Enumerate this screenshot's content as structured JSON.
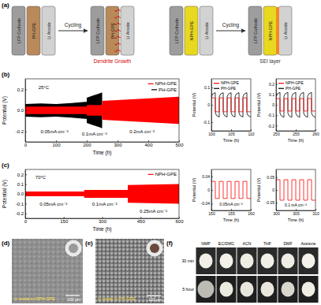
{
  "panel_a": {
    "label": "(a)",
    "cells": [
      {
        "cathode": "LFP Cathode",
        "electrolyte": "PH-GPE",
        "anode": "Li Anode"
      },
      {
        "cathode": "LFP Cathode",
        "electrolyte": "PH-GPE",
        "anode": "Li Anode",
        "note": "Dendrite Growth"
      },
      {
        "cathode": "LFP Cathode",
        "electrolyte": "NPH-GPE",
        "anode": "Li Anode"
      },
      {
        "cathode": "LFP Cathode",
        "electrolyte": "NPH-GPE",
        "anode": "Li Anode",
        "note": "SEI layer"
      }
    ],
    "arrows": [
      "Cycling",
      "Cycling"
    ]
  },
  "chart_data": [
    {
      "type": "band",
      "title": "(b)",
      "x_label": "Time (h)",
      "y_label": "Potential (V)",
      "xlim": [
        0,
        500
      ],
      "xticks": [
        0,
        100,
        200,
        300,
        400,
        500
      ],
      "ylim": [
        -0.3,
        0.3
      ],
      "yticks": [
        -0.2,
        {
          "value": 0,
          "label": "0.0"
        },
        0.2
      ],
      "legend": "upper right",
      "series": [
        {
          "name": "NPH-GPE",
          "color": "#ff0000",
          "x": [
            0,
            200,
            200,
            250,
            250,
            500
          ],
          "high": [
            0.035,
            0.035,
            0.05,
            0.05,
            0.09,
            0.13
          ],
          "low": [
            -0.035,
            -0.035,
            -0.05,
            -0.05,
            -0.09,
            -0.13
          ]
        },
        {
          "name": "PH-GPE",
          "color": "#000000",
          "x": [
            0,
            50,
            100,
            150,
            195,
            200,
            200,
            220,
            240,
            250
          ],
          "high": [
            0.06,
            0.065,
            0.06,
            0.07,
            0.08,
            0.08,
            0.12,
            0.14,
            0.16,
            0.17
          ],
          "low": [
            -0.06,
            -0.065,
            -0.06,
            -0.07,
            -0.08,
            -0.08,
            -0.12,
            -0.14,
            -0.16,
            -0.17
          ]
        }
      ],
      "annotations": [
        {
          "text": "25°C",
          "x": 60,
          "y": 0.2
        },
        {
          "text": "0.05mA cm⁻²",
          "x": 95,
          "y": -0.22
        },
        {
          "text": "0.1mA cm⁻²",
          "x": 225,
          "y": -0.24
        },
        {
          "text": "0.2mA cm⁻²",
          "x": 380,
          "y": -0.22
        }
      ]
    },
    {
      "type": "line",
      "x_label": "Time (h)",
      "y_label": "Potential (V)",
      "xlim": [
        100,
        110
      ],
      "xticks": [
        100,
        105,
        110
      ],
      "ylim": [
        -0.15,
        0.15
      ],
      "yticks": [
        -0.1,
        0,
        0.1
      ],
      "legend": "upper left",
      "series": [
        {
          "name": "NPH-GPE",
          "color": "#ff0000",
          "x": [
            100,
            101,
            101,
            102,
            102,
            103,
            103,
            104,
            104,
            105,
            105,
            106,
            106,
            107,
            107,
            108,
            108,
            109,
            109,
            110
          ],
          "values": [
            0.04,
            0.04,
            -0.04,
            -0.04,
            0.04,
            0.04,
            -0.04,
            -0.04,
            0.04,
            0.04,
            -0.04,
            -0.04,
            0.04,
            0.04,
            -0.04,
            -0.04,
            0.04,
            0.04,
            -0.04,
            -0.04
          ]
        },
        {
          "name": "PH-GPE",
          "color": "#000000",
          "x": [
            100,
            100.3,
            101,
            101,
            101.3,
            102,
            102,
            102.3,
            103,
            103,
            103.3,
            104,
            104,
            104.3,
            105,
            105,
            105.3,
            106,
            106,
            106.3,
            107,
            107,
            107.3,
            108,
            108,
            108.3,
            109,
            109,
            109.3,
            110
          ],
          "values": [
            0.045,
            0.062,
            0.07,
            -0.045,
            -0.062,
            -0.07,
            0.045,
            0.062,
            0.07,
            -0.045,
            -0.062,
            -0.07,
            0.045,
            0.062,
            0.07,
            -0.045,
            -0.062,
            -0.07,
            0.045,
            0.062,
            0.07,
            -0.045,
            -0.062,
            -0.07,
            0.045,
            0.062,
            0.07,
            -0.045,
            -0.062,
            -0.07
          ]
        }
      ]
    },
    {
      "type": "line",
      "x_label": "Time (h)",
      "y_label": "Potential (V)",
      "xlim": [
        250,
        260
      ],
      "xticks": [
        250,
        255,
        260
      ],
      "ylim": [
        -0.25,
        0.25
      ],
      "yticks": [
        -0.2,
        -0.1,
        0,
        0.1,
        0.2
      ],
      "legend": "upper left",
      "series": [
        {
          "name": "NPH-GPE",
          "color": "#ff0000",
          "x": [
            250,
            251,
            251,
            252,
            252,
            253,
            253,
            254,
            254,
            255,
            255,
            256,
            256,
            257,
            257,
            258,
            258,
            259,
            259,
            260
          ],
          "values": [
            0.06,
            0.06,
            -0.06,
            -0.06,
            0.06,
            0.06,
            -0.06,
            -0.06,
            0.06,
            0.06,
            -0.06,
            -0.06,
            0.06,
            0.06,
            -0.06,
            -0.06,
            0.06,
            0.06,
            -0.06,
            -0.06
          ]
        },
        {
          "name": "PH-GPE",
          "color": "#000000",
          "x": [
            250,
            250.3,
            251,
            251,
            251.3,
            252,
            252,
            252.3,
            253,
            253,
            253.3,
            254,
            254,
            254.3,
            255,
            255,
            255.3,
            256,
            256,
            256.3,
            257,
            257,
            257.3,
            258,
            258,
            258.3,
            259,
            259,
            259.3,
            260
          ],
          "values": [
            0.08,
            0.105,
            0.12,
            -0.08,
            -0.105,
            -0.12,
            0.08,
            0.105,
            0.12,
            -0.08,
            -0.105,
            -0.12,
            0.08,
            0.105,
            0.12,
            -0.08,
            -0.105,
            -0.12,
            0.08,
            0.105,
            0.12,
            -0.08,
            -0.105,
            -0.12,
            0.08,
            0.105,
            0.12,
            -0.08,
            -0.105,
            -0.12
          ]
        }
      ]
    },
    {
      "type": "band",
      "title": "(c)",
      "x_label": "Time (h)",
      "y_label": "Potential (V)",
      "xlim": [
        0,
        600
      ],
      "xticks": [
        0,
        150,
        300,
        450,
        600
      ],
      "ylim": [
        -0.25,
        0.25
      ],
      "yticks": [
        -0.2,
        -0.1,
        {
          "value": 0,
          "label": "0.0"
        },
        0.1,
        0.2
      ],
      "legend": "upper right",
      "series": [
        {
          "name": "NPH-GPE",
          "color": "#ff0000",
          "x": [
            0,
            230,
            230,
            400,
            400,
            600
          ],
          "high": [
            0.025,
            0.025,
            0.04,
            0.04,
            0.09,
            0.1
          ],
          "low": [
            -0.025,
            -0.025,
            -0.04,
            -0.04,
            -0.09,
            -0.1
          ]
        }
      ],
      "annotations": [
        {
          "text": "70°C",
          "x": 60,
          "y": 0.15
        },
        {
          "text": "0.05mA cm⁻²",
          "x": 110,
          "y": -0.12
        },
        {
          "text": "0.1mA cm⁻²",
          "x": 310,
          "y": -0.12
        },
        {
          "text": "0.25mA cm⁻²",
          "x": 500,
          "y": -0.19
        }
      ]
    },
    {
      "type": "line",
      "x_label": "Time (h)",
      "y_label": "Potential (V)",
      "xlim": [
        150,
        160
      ],
      "xticks": [
        150,
        155,
        160
      ],
      "ylim": [
        -0.06,
        0.06
      ],
      "yticks": [
        -0.04,
        0,
        0.04
      ],
      "series": [
        {
          "color": "#ff0000",
          "x": [
            150,
            151,
            151,
            152,
            152,
            153,
            153,
            154,
            154,
            155,
            155,
            156,
            156,
            157,
            157,
            158,
            158,
            159,
            159,
            160
          ],
          "values": [
            0.025,
            0.025,
            -0.025,
            -0.025,
            0.025,
            0.025,
            -0.025,
            -0.025,
            0.025,
            0.025,
            -0.025,
            -0.025,
            0.025,
            0.025,
            -0.025,
            -0.025,
            0.025,
            0.025,
            -0.025,
            -0.025
          ]
        }
      ],
      "annotations": [
        {
          "text": "0.05mA cm⁻²",
          "x": 155,
          "y": -0.045
        }
      ]
    },
    {
      "type": "line",
      "x_label": "Time (h)",
      "y_label": "Potential (V)",
      "xlim": [
        300,
        310
      ],
      "xticks": [
        300,
        305,
        310
      ],
      "ylim": [
        -0.08,
        0.08
      ],
      "yticks": [
        -0.05,
        0,
        0.05
      ],
      "series": [
        {
          "color": "#ff0000",
          "x": [
            300,
            301,
            301,
            302,
            302,
            303,
            303,
            304,
            304,
            305,
            305,
            306,
            306,
            307,
            307,
            308,
            308,
            309,
            309,
            310
          ],
          "values": [
            0.04,
            0.04,
            -0.04,
            -0.04,
            0.04,
            0.04,
            -0.04,
            -0.04,
            0.04,
            0.04,
            -0.04,
            -0.04,
            0.04,
            0.04,
            -0.04,
            -0.04,
            0.04,
            0.04,
            -0.04,
            -0.04
          ]
        }
      ],
      "annotations": [
        {
          "text": "0.1 mA cm⁻²",
          "x": 305,
          "y": -0.065
        }
      ]
    }
  ],
  "panel_d": {
    "label": "(d)",
    "caption": "Li metal in NPH-GPE",
    "scale_bar": "100 μm"
  },
  "panel_e": {
    "label": "(e)",
    "caption": "Li metal in PH-GPE",
    "scale_bar": "100 μm"
  },
  "panel_f": {
    "label": "(f)",
    "columns": [
      "NMP",
      "EC/DMC",
      "ACN",
      "THF",
      "DMF",
      "Acetone"
    ],
    "rows": [
      "30 min",
      "5 hour"
    ]
  }
}
